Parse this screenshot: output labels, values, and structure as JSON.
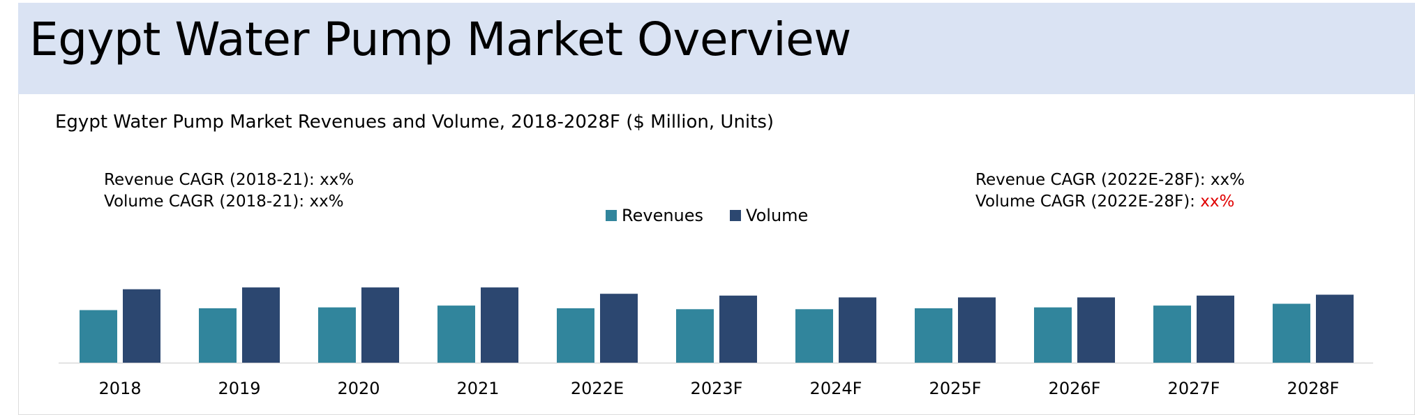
{
  "header": {
    "title": "Egypt Water Pump Market Overview"
  },
  "annotations": {
    "left": [
      {
        "label": "Revenue CAGR (2018-21): ",
        "value": "xx%"
      },
      {
        "label": "Volume CAGR (2018-21): ",
        "value": "xx%"
      }
    ],
    "right": [
      {
        "label": "Revenue CAGR (2022E-28F): ",
        "value": "xx%"
      },
      {
        "label": "Volume CAGR (2022E-28F): ",
        "value": "xx%",
        "color": "#e00000"
      }
    ]
  },
  "chart_data": {
    "type": "bar",
    "title": "Egypt Water Pump Market Revenues and Volume, 2018-2028F ($ Million, Units)",
    "xlabel": "",
    "ylabel": "",
    "ylim": [
      0,
      1
    ],
    "grid": false,
    "legend_placement": "top-center",
    "categories": [
      "2018",
      "2019",
      "2020",
      "2021",
      "2022E",
      "2023F",
      "2024F",
      "2025F",
      "2026F",
      "2027F",
      "2028F"
    ],
    "series": [
      {
        "name": "Revenues",
        "color": "#31859c",
        "values": [
          0.58,
          0.6,
          0.61,
          0.63,
          0.6,
          0.59,
          0.59,
          0.6,
          0.61,
          0.63,
          0.65
        ]
      },
      {
        "name": "Volume",
        "color": "#2c4770",
        "values": [
          0.81,
          0.83,
          0.83,
          0.83,
          0.76,
          0.74,
          0.72,
          0.72,
          0.72,
          0.74,
          0.75
        ]
      }
    ]
  }
}
